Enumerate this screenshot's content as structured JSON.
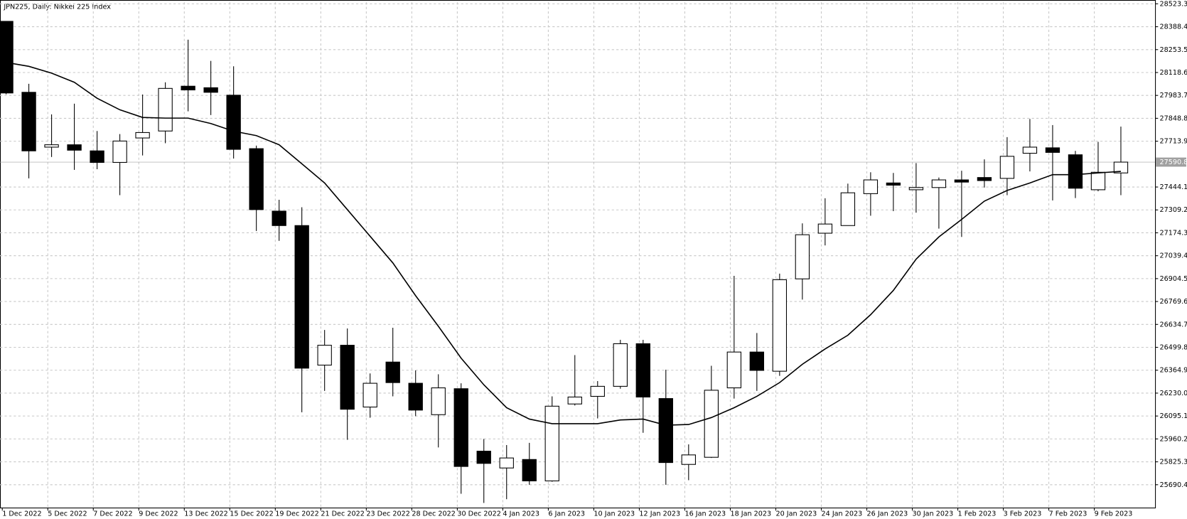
{
  "chart_data": {
    "type": "candlestick",
    "title": "JPN225, Daily:  Nikkei 225 Index",
    "categories": [
      "1 Dec 2022",
      null,
      "5 Dec 2022",
      null,
      "7 Dec 2022",
      null,
      "9 Dec 2022",
      null,
      "13 Dec 2022",
      null,
      "15 Dec 2022",
      null,
      "19 Dec 2022",
      null,
      "21 Dec 2022",
      null,
      "23 Dec 2022",
      null,
      "28 Dec 2022",
      null,
      "30 Dec 2022",
      null,
      "4 Jan 2023",
      null,
      "6 Jan 2023",
      null,
      "10 Jan 2023",
      null,
      "12 Jan 2023",
      null,
      "16 Jan 2023",
      null,
      "18 Jan 2023",
      null,
      "20 Jan 2023",
      null,
      "24 Jan 2023",
      null,
      "26 Jan 2023",
      null,
      "30 Jan 2023",
      null,
      "1 Feb 2023",
      null,
      "3 Feb 2023",
      null,
      "7 Feb 2023",
      null,
      "9 Feb 2023",
      null
    ],
    "open": [
      28420,
      28002,
      27679,
      27693,
      27657,
      27589,
      27733,
      27774,
      28038,
      28029,
      27985,
      27670,
      27302,
      27217,
      26395,
      26512,
      26148,
      26413,
      26288,
      26103,
      26256,
      25888,
      25789,
      25839,
      25713,
      26166,
      26211,
      26270,
      26521,
      26198,
      25810,
      25852,
      26261,
      26472,
      26359,
      26903,
      27172,
      27217,
      27405,
      27468,
      27428,
      27441,
      27486,
      27500,
      27495,
      27643,
      27675,
      27634,
      27428,
      27527
    ],
    "high": [
      28420,
      28052,
      27872,
      27935,
      27774,
      27756,
      27989,
      28061,
      28312,
      28187,
      28155,
      27688,
      27369,
      27325,
      26602,
      26611,
      26346,
      26615,
      26364,
      26341,
      26288,
      25960,
      25924,
      25937,
      26211,
      26454,
      26301,
      26544,
      26544,
      26368,
      25928,
      26391,
      26921,
      26584,
      26934,
      27230,
      27378,
      27464,
      27531,
      27527,
      27585,
      27500,
      27540,
      27607,
      27738,
      27845,
      27809,
      27657,
      27710,
      27800
    ],
    "low": [
      27990,
      27495,
      27621,
      27545,
      27549,
      27396,
      27630,
      27702,
      27890,
      27868,
      27612,
      27185,
      27127,
      26117,
      26243,
      25955,
      26085,
      26211,
      26094,
      25910,
      25637,
      25583,
      25605,
      25690,
      25708,
      26157,
      26081,
      26256,
      25996,
      25690,
      25717,
      25848,
      26198,
      26243,
      26332,
      26781,
      27100,
      27217,
      27275,
      27302,
      27293,
      27199,
      27150,
      27441,
      27396,
      27536,
      27365,
      27379,
      27419,
      27396
    ],
    "close": [
      27998,
      27657,
      27693,
      27661,
      27589,
      27715,
      27765,
      28025,
      28016,
      28002,
      27666,
      27311,
      27217,
      26377,
      26512,
      26135,
      26288,
      26292,
      26130,
      26261,
      25798,
      25816,
      25848,
      25713,
      26153,
      26207,
      26270,
      26521,
      26207,
      25821,
      25866,
      26247,
      26472,
      26364,
      26898,
      27163,
      27226,
      27410,
      27486,
      27455,
      27441,
      27486,
      27473,
      27482,
      27625,
      27679,
      27648,
      27437,
      27531,
      27590.8
    ],
    "ma": [
      28178,
      28155,
      28115,
      28061,
      27967,
      27899,
      27854,
      27850,
      27850,
      27818,
      27773,
      27747,
      27693,
      27581,
      27468,
      27311,
      27154,
      26997,
      26804,
      26624,
      26436,
      26279,
      26144,
      26077,
      26050,
      26050,
      26050,
      26072,
      26077,
      26041,
      26045,
      26086,
      26144,
      26211,
      26292,
      26400,
      26490,
      26571,
      26692,
      26835,
      27019,
      27150,
      27253,
      27361,
      27424,
      27468,
      27517,
      27517,
      27527,
      27536
    ],
    "last_price": 27590.8,
    "ylim": [
      25555.7,
      28532.3
    ],
    "yticks": [
      25690.4,
      25825.3,
      25960.2,
      26095.1,
      {
        "value": 26230,
        "label": "26230.0"
      },
      26364.9,
      26499.8,
      26634.7,
      26769.6,
      26904.5,
      27039.4,
      27174.3,
      27309.2,
      27444.1,
      27713.9,
      27848.8,
      27983.7,
      28118.6,
      28253.5,
      28388.4,
      28523.3
    ],
    "up_color": "#ffffff",
    "down_color": "#000000",
    "line_color": "#000000",
    "grid": true
  }
}
